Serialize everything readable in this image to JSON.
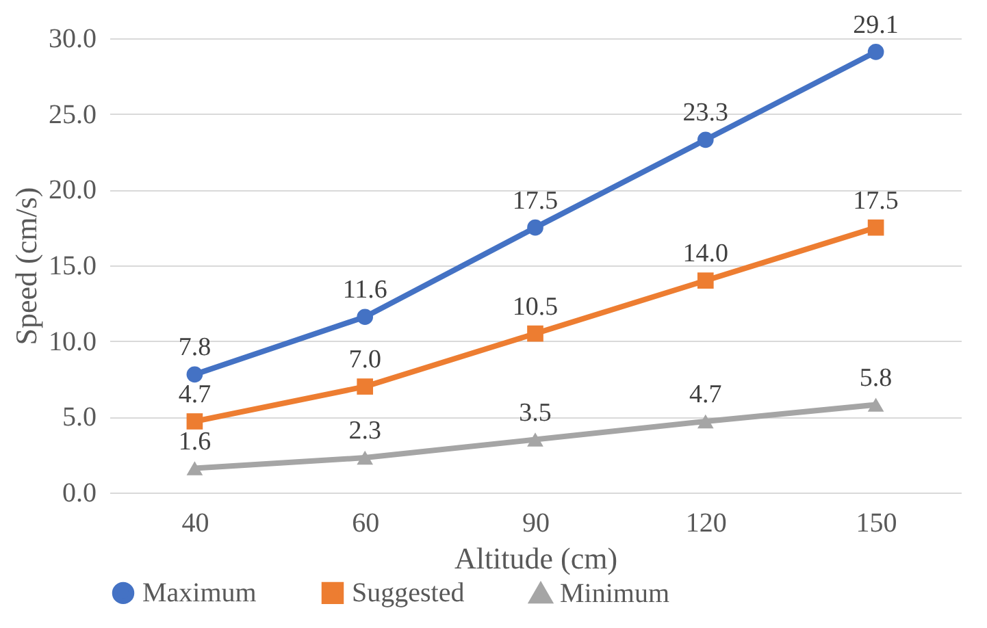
{
  "chart_data": {
    "type": "line",
    "xlabel": "Altitude (cm)",
    "ylabel": "Speed (cm/s)",
    "categories": [
      "40",
      "60",
      "90",
      "120",
      "150"
    ],
    "series": [
      {
        "name": "Maximum",
        "color": "#4472c4",
        "marker": "circle",
        "values": [
          7.8,
          11.6,
          17.5,
          23.3,
          29.1
        ],
        "value_labels": [
          "7.8",
          "11.6",
          "17.5",
          "23.3",
          "29.1"
        ]
      },
      {
        "name": "Suggested",
        "color": "#ed7d31",
        "marker": "square",
        "values": [
          4.7,
          7.0,
          10.5,
          14.0,
          17.5
        ],
        "value_labels": [
          "4.7",
          "7.0",
          "10.5",
          "14.0",
          "17.5"
        ]
      },
      {
        "name": "Minimum",
        "color": "#a5a5a5",
        "marker": "triangle",
        "values": [
          1.6,
          2.3,
          3.5,
          4.7,
          5.8
        ],
        "value_labels": [
          "1.6",
          "2.3",
          "3.5",
          "4.7",
          "5.8"
        ]
      }
    ],
    "ylim": [
      0,
      30
    ],
    "yticks": [
      {
        "value": 0,
        "label": "0.0"
      },
      {
        "value": 5,
        "label": "5.0"
      },
      {
        "value": 10,
        "label": "10.0"
      },
      {
        "value": 15,
        "label": "15.0"
      },
      {
        "value": 20,
        "label": "20.0"
      },
      {
        "value": 25,
        "label": "25.0"
      },
      {
        "value": 30,
        "label": "30.0"
      }
    ],
    "grid": "y",
    "legend": "bottom",
    "line_style": "solid"
  }
}
